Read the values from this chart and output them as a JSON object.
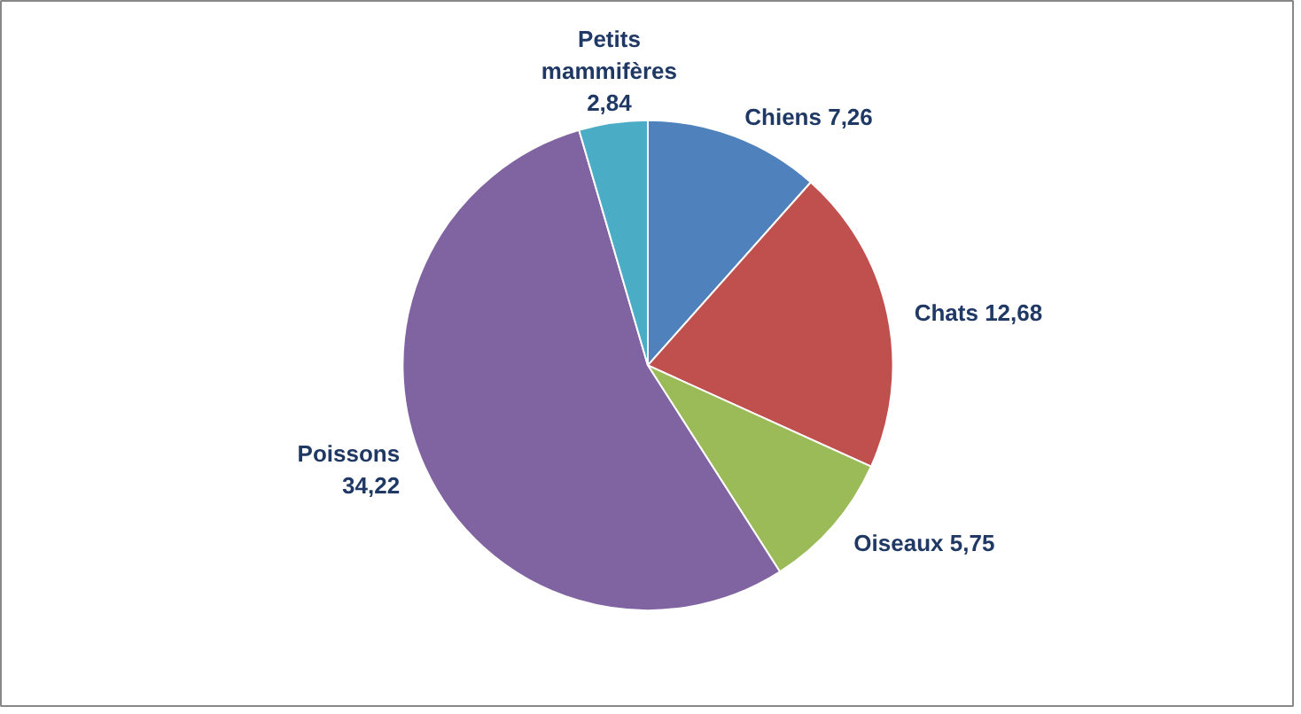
{
  "chart_data": {
    "type": "pie",
    "categories": [
      "Chiens",
      "Chats",
      "Oiseaux",
      "Poissons",
      "Petits mammifères"
    ],
    "values": [
      7.26,
      12.68,
      5.75,
      34.22,
      2.84
    ],
    "value_labels": [
      "7,26",
      "12,68",
      "5,75",
      "34,22",
      "2,84"
    ],
    "colors": [
      "#4f81bd",
      "#c0504d",
      "#9bbb59",
      "#8064a2",
      "#4bacc6"
    ]
  }
}
